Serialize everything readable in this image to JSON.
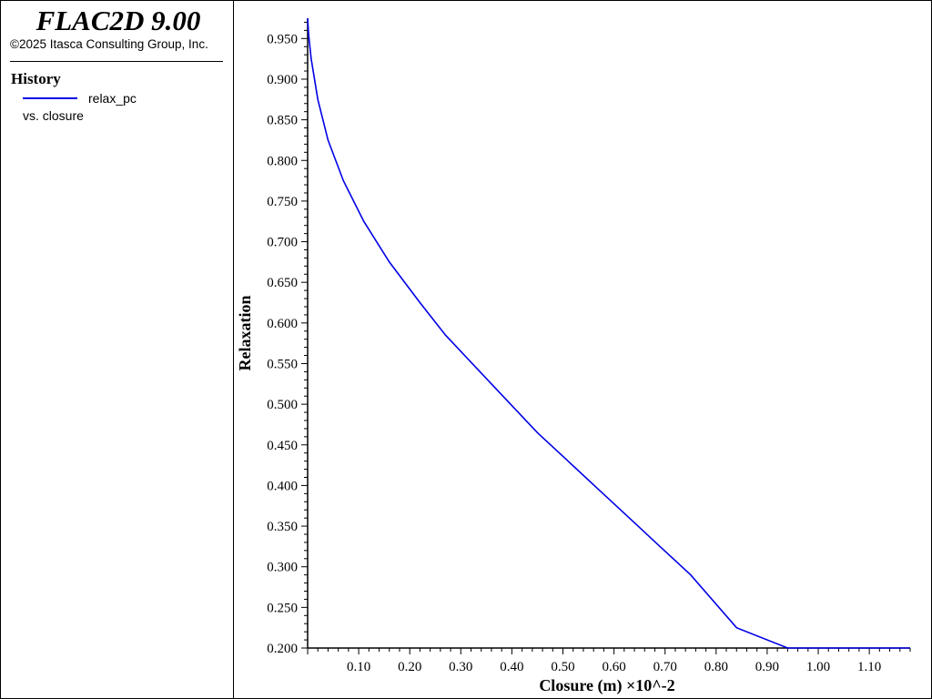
{
  "app": {
    "title": "FLAC2D 9.00",
    "copyright": "©2025 Itasca Consulting Group, Inc."
  },
  "legend": {
    "heading": "History",
    "series_label": "relax_pc",
    "vs_label": "vs. closure",
    "line_color": "#0000e6"
  },
  "chart_data": {
    "type": "line",
    "title": "",
    "xlabel": "Closure (m)  ×10^-2",
    "ylabel": "Relaxation",
    "xlim": [
      0.0,
      1.18
    ],
    "ylim": [
      0.2,
      0.975
    ],
    "x_ticks": [
      "0.10",
      "0.20",
      "0.30",
      "0.40",
      "0.50",
      "0.60",
      "0.70",
      "0.80",
      "0.90",
      "1.00",
      "1.10"
    ],
    "y_ticks": [
      "0.200",
      "0.250",
      "0.300",
      "0.350",
      "0.400",
      "0.450",
      "0.500",
      "0.550",
      "0.600",
      "0.650",
      "0.700",
      "0.750",
      "0.800",
      "0.850",
      "0.900",
      "0.950"
    ],
    "grid": false,
    "series": [
      {
        "name": "relax_pc",
        "color": "#0000e6",
        "x": [
          0.0,
          0.002,
          0.007,
          0.02,
          0.04,
          0.07,
          0.11,
          0.16,
          0.22,
          0.27,
          0.33,
          0.39,
          0.45,
          0.51,
          0.57,
          0.63,
          0.69,
          0.75,
          0.84,
          0.94,
          1.0,
          1.18
        ],
        "y": [
          0.975,
          0.955,
          0.925,
          0.875,
          0.825,
          0.775,
          0.725,
          0.675,
          0.625,
          0.585,
          0.545,
          0.505,
          0.465,
          0.43,
          0.395,
          0.36,
          0.325,
          0.29,
          0.225,
          0.2,
          0.2,
          0.2
        ]
      }
    ]
  }
}
